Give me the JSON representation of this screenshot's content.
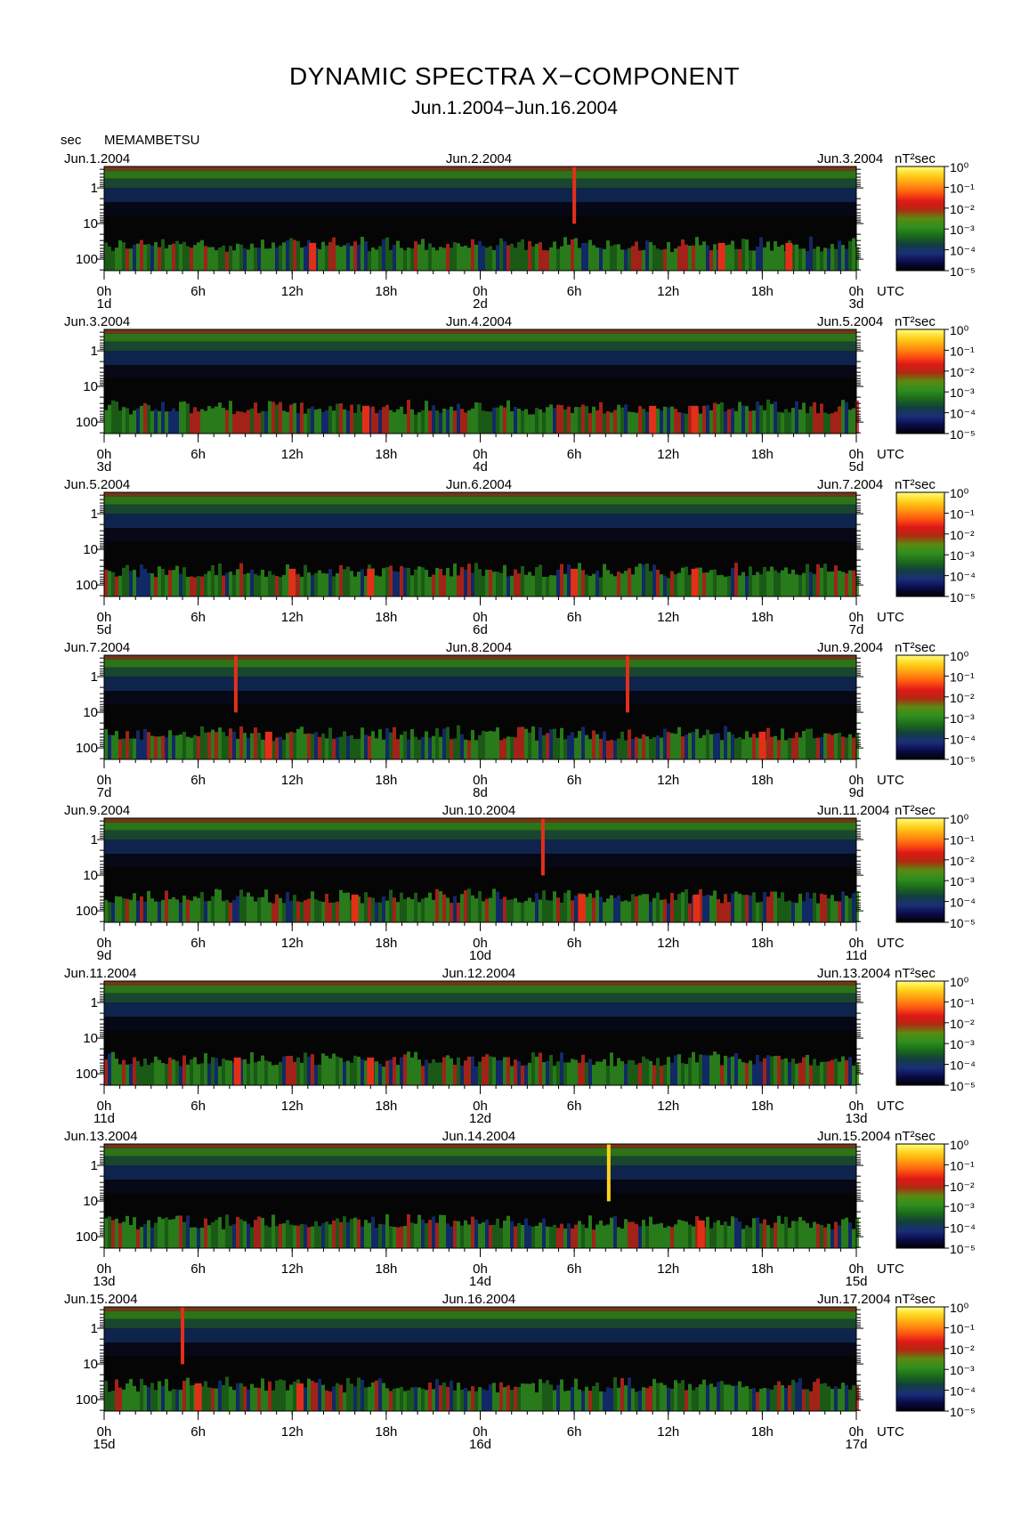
{
  "page": {
    "title": "DYNAMIC SPECTRA X−COMPONENT",
    "subtitle": "Jun.1.2004−Jun.16.2004",
    "y_unit": "sec",
    "station": "MEMAMBETSU"
  },
  "chart_data": {
    "type": "heatmap",
    "title": "DYNAMIC SPECTRA X−COMPONENT",
    "subtitle": "Jun.1.2004−Jun.16.2004",
    "station": "MEMAMBETSU",
    "ylabel": "sec",
    "y_scale": "log",
    "y_ticks": [
      "1",
      "10",
      "100"
    ],
    "x_ticks": [
      "0h",
      "6h",
      "12h",
      "18h",
      "0h",
      "6h",
      "12h",
      "18h",
      "0h"
    ],
    "x_suffix": "UTC",
    "colorbar": {
      "unit": "nT²sec",
      "scale": "log",
      "ticks": [
        "10⁰",
        "10⁻¹",
        "10⁻²",
        "10⁻³",
        "10⁻⁴",
        "10⁻⁵"
      ],
      "colors": [
        "#000000",
        "#0b0b4a",
        "#1a2f78",
        "#123f3f",
        "#1a6a1a",
        "#2f8f1e",
        "#5a8a12",
        "#b02a10",
        "#e01818",
        "#ff5a10",
        "#ff9a10",
        "#ffd21a",
        "#ffff80"
      ]
    },
    "panels": [
      {
        "left_date": "Jun.1.2004",
        "mid_date": "Jun.2.2004",
        "right_date": "Jun.3.2004",
        "days": [
          "1d",
          "2d",
          "3d"
        ],
        "events": [
          {
            "t": 13.3,
            "period": 100,
            "level": "red"
          },
          {
            "t": 30.0,
            "period": 1,
            "level": "red"
          },
          {
            "t": 39.4,
            "period": 100,
            "level": "red"
          },
          {
            "t": 43.7,
            "period": 100,
            "level": "red"
          }
        ]
      },
      {
        "left_date": "Jun.3.2004",
        "mid_date": "Jun.4.2004",
        "right_date": "Jun.5.2004",
        "days": [
          "3d",
          "4d",
          "5d"
        ],
        "events": [
          {
            "t": 16.7,
            "period": 100,
            "level": "red"
          },
          {
            "t": 35.0,
            "period": 100,
            "level": "red"
          },
          {
            "t": 37.7,
            "period": 100,
            "level": "red"
          }
        ]
      },
      {
        "left_date": "Jun.5.2004",
        "mid_date": "Jun.6.2004",
        "right_date": "Jun.7.2004",
        "days": [
          "5d",
          "6d",
          "7d"
        ],
        "events": [
          {
            "t": 12.0,
            "period": 100,
            "level": "red"
          },
          {
            "t": 17.0,
            "period": 100,
            "level": "red"
          },
          {
            "t": 30.0,
            "period": 100,
            "level": "red"
          },
          {
            "t": 37.7,
            "period": 100,
            "level": "red"
          }
        ]
      },
      {
        "left_date": "Jun.7.2004",
        "mid_date": "Jun.8.2004",
        "right_date": "Jun.9.2004",
        "days": [
          "7d",
          "8d",
          "9d"
        ],
        "events": [
          {
            "t": 8.4,
            "period": 1,
            "level": "red"
          },
          {
            "t": 10.5,
            "period": 100,
            "level": "red"
          },
          {
            "t": 33.4,
            "period": 1,
            "level": "red"
          },
          {
            "t": 42.0,
            "period": 100,
            "level": "red"
          }
        ]
      },
      {
        "left_date": "Jun.9.2004",
        "mid_date": "Jun.10.2004",
        "right_date": "Jun.11.2004",
        "days": [
          "9d",
          "10d",
          "11d"
        ],
        "events": [
          {
            "t": 16.0,
            "period": 100,
            "level": "red"
          },
          {
            "t": 28.0,
            "period": 1,
            "level": "red"
          },
          {
            "t": 30.5,
            "period": 100,
            "level": "red"
          },
          {
            "t": 37.8,
            "period": 100,
            "level": "red"
          }
        ]
      },
      {
        "left_date": "Jun.11.2004",
        "mid_date": "Jun.12.2004",
        "right_date": "Jun.13.2004",
        "days": [
          "11d",
          "12d",
          "13d"
        ],
        "events": [
          {
            "t": 8.5,
            "period": 100,
            "level": "red"
          },
          {
            "t": 17.0,
            "period": 100,
            "level": "red"
          }
        ]
      },
      {
        "left_date": "Jun.13.2004",
        "mid_date": "Jun.14.2004",
        "right_date": "Jun.15.2004",
        "days": [
          "13d",
          "14d",
          "15d"
        ],
        "events": [
          {
            "t": 32.2,
            "period": 1,
            "level": "yellow"
          },
          {
            "t": 38.1,
            "period": 100,
            "level": "red"
          }
        ]
      },
      {
        "left_date": "Jun.15.2004",
        "mid_date": "Jun.16.2004",
        "right_date": "Jun.17.2004",
        "days": [
          "15d",
          "16d",
          "17d"
        ],
        "events": [
          {
            "t": 5.0,
            "period": 1,
            "level": "red"
          },
          {
            "t": 12.5,
            "period": 100,
            "level": "red"
          },
          {
            "t": 6.0,
            "period": 100,
            "level": "red"
          }
        ]
      }
    ]
  }
}
